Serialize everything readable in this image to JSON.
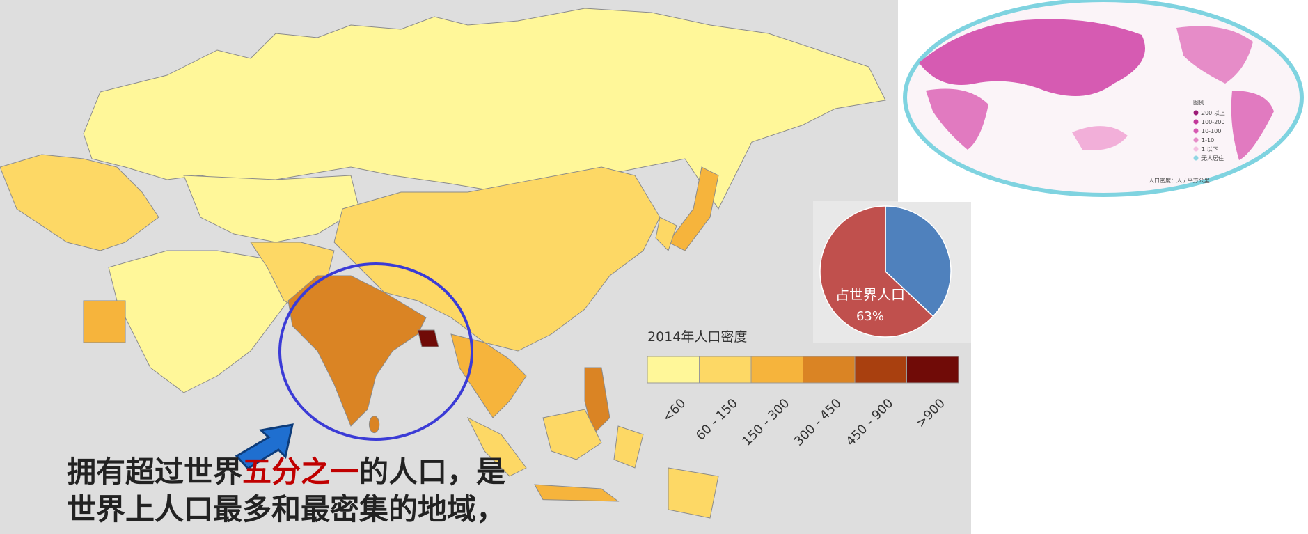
{
  "legend": {
    "title": "2014年人口密度",
    "items": [
      {
        "label": "<60",
        "color": "#fff799"
      },
      {
        "label": "60 - 150",
        "color": "#fdd865"
      },
      {
        "label": "150 - 300",
        "color": "#f6b43c"
      },
      {
        "label": "300 - 450",
        "color": "#da8424"
      },
      {
        "label": "450 - 900",
        "color": "#a9400f"
      },
      {
        "label": ">900",
        "color": "#700b07"
      }
    ]
  },
  "pie": {
    "label": "占世界人口",
    "slices": [
      {
        "value": 63,
        "label": "63%",
        "color": "#c0504d"
      },
      {
        "value": 37,
        "color": "#4f81bd"
      }
    ]
  },
  "caption": {
    "lines": [
      [
        "拥有超过世界",
        "五分之一",
        "的人口，是"
      ],
      [
        "世界上人口最多和最密集的地域，"
      ]
    ]
  },
  "inset": {
    "legend_title": "图例",
    "items": [
      "200 以上",
      "100-200",
      "10-100",
      "1-10",
      "1 以下",
      "无人居住"
    ],
    "note": "人口密度：人 / 平方公里"
  }
}
